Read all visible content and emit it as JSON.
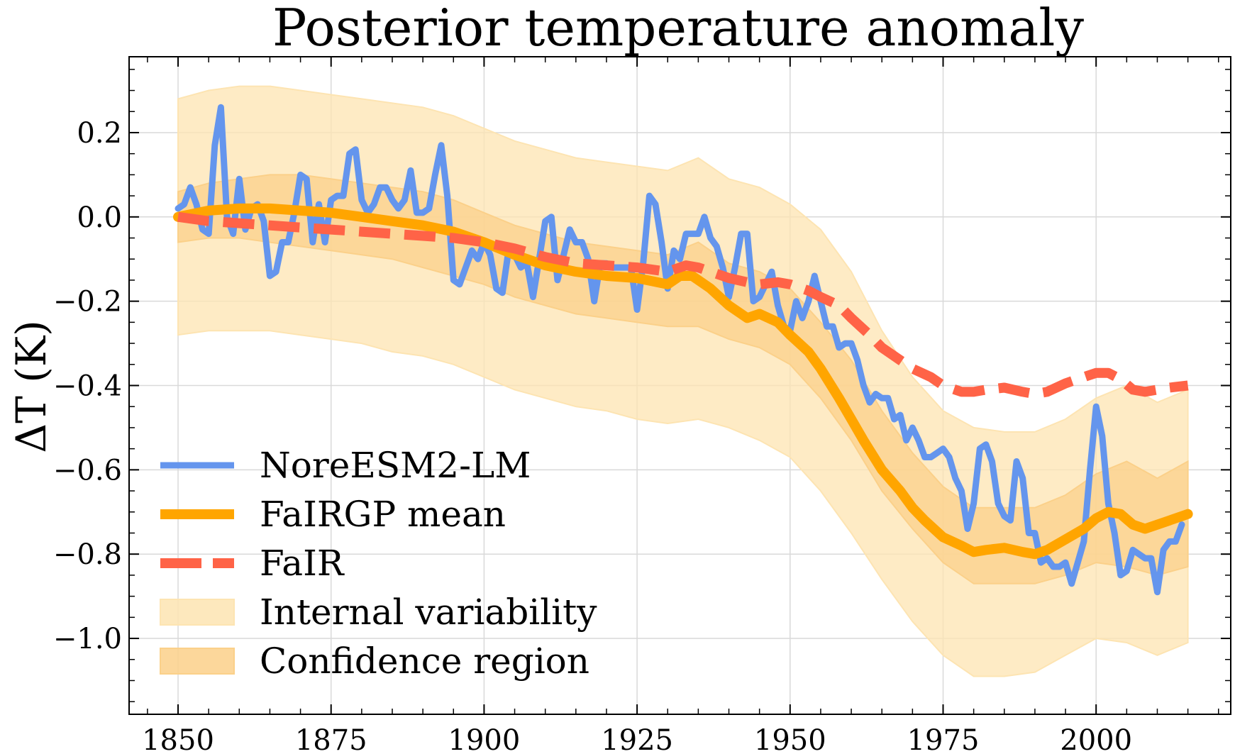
{
  "chart_data": {
    "type": "line",
    "title": "Posterior temperature anomaly",
    "ylabel": "ΔT (K)",
    "xlabel": "",
    "xlim": [
      1842,
      2022
    ],
    "ylim": [
      -1.18,
      0.38
    ],
    "grid": true,
    "legend_position": "bottom-left",
    "x_ticks": [
      1850,
      1875,
      1900,
      1925,
      1950,
      1975,
      2000
    ],
    "y_ticks": [
      0.2,
      0.0,
      -0.2,
      -0.4,
      -0.6,
      -0.8,
      -1.0
    ],
    "x_tick_labels": [
      "1850",
      "1875",
      "1900",
      "1925",
      "1950",
      "1975",
      "2000"
    ],
    "y_tick_labels": [
      "0.2",
      "0.0",
      "−0.2",
      "−0.4",
      "−0.6",
      "−0.8",
      "−1.0"
    ],
    "legend": {
      "noresm": "NoreESM2-LM",
      "fairgp_mean": "FaIRGP mean",
      "fair": "FaIR",
      "internal_variability": "Internal variability",
      "confidence_region": "Confidence region"
    },
    "colors": {
      "noresm": "#6495ED",
      "fairgp_mean": "#FFA500",
      "fair": "#FF6347",
      "internal_variability": "#FDE4B2",
      "confidence_region": "#FBD089"
    },
    "series": [
      {
        "key": "noresm",
        "style": "solid",
        "x": [
          1850,
          1851,
          1852,
          1853,
          1854,
          1855,
          1856,
          1857,
          1858,
          1859,
          1860,
          1861,
          1862,
          1863,
          1864,
          1865,
          1866,
          1867,
          1868,
          1869,
          1870,
          1871,
          1872,
          1873,
          1874,
          1875,
          1876,
          1877,
          1878,
          1879,
          1880,
          1881,
          1882,
          1883,
          1884,
          1885,
          1886,
          1887,
          1888,
          1889,
          1890,
          1891,
          1892,
          1893,
          1894,
          1895,
          1896,
          1897,
          1898,
          1899,
          1900,
          1901,
          1902,
          1903,
          1904,
          1905,
          1906,
          1907,
          1908,
          1909,
          1910,
          1911,
          1912,
          1913,
          1914,
          1915,
          1916,
          1917,
          1918,
          1919,
          1920,
          1921,
          1922,
          1923,
          1924,
          1925,
          1926,
          1927,
          1928,
          1929,
          1930,
          1931,
          1932,
          1933,
          1934,
          1935,
          1936,
          1937,
          1938,
          1939,
          1940,
          1941,
          1942,
          1943,
          1944,
          1945,
          1946,
          1947,
          1948,
          1949,
          1950,
          1951,
          1952,
          1953,
          1954,
          1955,
          1956,
          1957,
          1958,
          1959,
          1960,
          1961,
          1962,
          1963,
          1964,
          1965,
          1966,
          1967,
          1968,
          1969,
          1970,
          1971,
          1972,
          1973,
          1974,
          1975,
          1976,
          1977,
          1978,
          1979,
          1980,
          1981,
          1982,
          1983,
          1984,
          1985,
          1986,
          1987,
          1988,
          1989,
          1990,
          1991,
          1992,
          1993,
          1994,
          1995,
          1996,
          1997,
          1998,
          1999,
          2000,
          2001,
          2002,
          2003,
          2004,
          2005,
          2006,
          2007,
          2008,
          2009,
          2010,
          2011,
          2012,
          2013,
          2014
        ],
        "y": [
          0.02,
          0.03,
          0.07,
          0.03,
          -0.03,
          -0.04,
          0.17,
          0.26,
          0.0,
          -0.04,
          0.09,
          -0.03,
          0.02,
          0.03,
          -0.01,
          -0.14,
          -0.13,
          -0.06,
          -0.06,
          0.01,
          0.1,
          0.09,
          -0.06,
          0.03,
          -0.06,
          0.04,
          0.05,
          0.05,
          0.15,
          0.16,
          0.04,
          0.01,
          0.03,
          0.07,
          0.07,
          0.04,
          0.02,
          0.04,
          0.11,
          0.01,
          0.01,
          0.02,
          0.1,
          0.17,
          0.05,
          -0.15,
          -0.16,
          -0.12,
          -0.08,
          -0.1,
          -0.06,
          -0.09,
          -0.17,
          -0.18,
          -0.08,
          -0.09,
          -0.12,
          -0.11,
          -0.19,
          -0.1,
          -0.01,
          0.0,
          -0.15,
          -0.09,
          -0.03,
          -0.06,
          -0.06,
          -0.1,
          -0.2,
          -0.11,
          -0.11,
          -0.12,
          -0.12,
          -0.12,
          -0.12,
          -0.22,
          -0.11,
          0.05,
          0.03,
          -0.06,
          -0.17,
          -0.08,
          -0.1,
          -0.04,
          -0.04,
          -0.04,
          0.0,
          -0.05,
          -0.07,
          -0.12,
          -0.19,
          -0.12,
          -0.04,
          -0.04,
          -0.2,
          -0.19,
          -0.16,
          -0.13,
          -0.21,
          -0.26,
          -0.27,
          -0.2,
          -0.24,
          -0.2,
          -0.14,
          -0.2,
          -0.26,
          -0.26,
          -0.31,
          -0.3,
          -0.3,
          -0.34,
          -0.4,
          -0.44,
          -0.42,
          -0.43,
          -0.43,
          -0.48,
          -0.47,
          -0.53,
          -0.5,
          -0.53,
          -0.57,
          -0.57,
          -0.56,
          -0.55,
          -0.57,
          -0.62,
          -0.65,
          -0.74,
          -0.68,
          -0.55,
          -0.54,
          -0.58,
          -0.68,
          -0.71,
          -0.72,
          -0.58,
          -0.62,
          -0.75,
          -0.75,
          -0.82,
          -0.81,
          -0.83,
          -0.83,
          -0.82,
          -0.87,
          -0.82,
          -0.77,
          -0.6,
          -0.45,
          -0.52,
          -0.68,
          -0.75,
          -0.85,
          -0.84,
          -0.79,
          -0.8,
          -0.81,
          -0.81,
          -0.89,
          -0.79,
          -0.77,
          -0.77,
          -0.73
        ]
      },
      {
        "key": "fairgp_mean",
        "style": "solid",
        "x": [
          1850,
          1855,
          1860,
          1865,
          1870,
          1875,
          1880,
          1885,
          1890,
          1895,
          1900,
          1905,
          1910,
          1915,
          1920,
          1925,
          1930,
          1932,
          1934,
          1935,
          1937,
          1940,
          1943,
          1945,
          1948,
          1950,
          1953,
          1955,
          1958,
          1960,
          1962,
          1965,
          1968,
          1970,
          1972,
          1975,
          1978,
          1980,
          1982,
          1985,
          1988,
          1990,
          1992,
          1995,
          1998,
          2000,
          2002,
          2004,
          2006,
          2008,
          2010,
          2012,
          2015
        ],
        "y": [
          0.0,
          0.015,
          0.02,
          0.02,
          0.015,
          0.01,
          0.0,
          -0.01,
          -0.02,
          -0.035,
          -0.06,
          -0.09,
          -0.115,
          -0.13,
          -0.14,
          -0.145,
          -0.16,
          -0.14,
          -0.14,
          -0.15,
          -0.17,
          -0.21,
          -0.24,
          -0.23,
          -0.25,
          -0.28,
          -0.32,
          -0.36,
          -0.43,
          -0.48,
          -0.53,
          -0.6,
          -0.65,
          -0.69,
          -0.72,
          -0.76,
          -0.78,
          -0.795,
          -0.79,
          -0.785,
          -0.795,
          -0.8,
          -0.79,
          -0.765,
          -0.74,
          -0.715,
          -0.7,
          -0.705,
          -0.73,
          -0.74,
          -0.73,
          -0.72,
          -0.705
        ]
      },
      {
        "key": "fair",
        "style": "dashed",
        "x": [
          1850,
          1855,
          1860,
          1865,
          1870,
          1875,
          1880,
          1885,
          1890,
          1895,
          1900,
          1905,
          1910,
          1915,
          1920,
          1925,
          1930,
          1933,
          1935,
          1938,
          1940,
          1943,
          1945,
          1948,
          1950,
          1953,
          1955,
          1958,
          1960,
          1963,
          1965,
          1968,
          1970,
          1973,
          1975,
          1978,
          1980,
          1982,
          1985,
          1988,
          1990,
          1992,
          1995,
          1998,
          2000,
          2002,
          2004,
          2006,
          2008,
          2010,
          2012,
          2015
        ],
        "y": [
          0.0,
          -0.01,
          -0.015,
          -0.02,
          -0.025,
          -0.03,
          -0.035,
          -0.04,
          -0.045,
          -0.05,
          -0.06,
          -0.075,
          -0.095,
          -0.11,
          -0.115,
          -0.12,
          -0.13,
          -0.115,
          -0.12,
          -0.135,
          -0.145,
          -0.155,
          -0.16,
          -0.155,
          -0.16,
          -0.175,
          -0.19,
          -0.21,
          -0.24,
          -0.28,
          -0.31,
          -0.34,
          -0.36,
          -0.38,
          -0.4,
          -0.415,
          -0.415,
          -0.41,
          -0.405,
          -0.415,
          -0.42,
          -0.415,
          -0.395,
          -0.38,
          -0.37,
          -0.37,
          -0.385,
          -0.41,
          -0.415,
          -0.41,
          -0.405,
          -0.4
        ]
      }
    ],
    "bands": [
      {
        "key": "internal_variability",
        "x": [
          1850,
          1855,
          1860,
          1865,
          1870,
          1875,
          1880,
          1885,
          1890,
          1895,
          1900,
          1905,
          1910,
          1915,
          1920,
          1925,
          1930,
          1935,
          1940,
          1945,
          1950,
          1955,
          1960,
          1965,
          1970,
          1975,
          1980,
          1985,
          1990,
          1995,
          2000,
          2005,
          2010,
          2015
        ],
        "lower": [
          -0.28,
          -0.27,
          -0.27,
          -0.27,
          -0.28,
          -0.29,
          -0.3,
          -0.32,
          -0.33,
          -0.35,
          -0.38,
          -0.41,
          -0.43,
          -0.45,
          -0.46,
          -0.48,
          -0.49,
          -0.48,
          -0.5,
          -0.53,
          -0.57,
          -0.65,
          -0.75,
          -0.86,
          -0.96,
          -1.04,
          -1.09,
          -1.09,
          -1.08,
          -1.04,
          -1.0,
          -1.01,
          -1.04,
          -1.01
        ],
        "upper": [
          0.28,
          0.3,
          0.31,
          0.31,
          0.3,
          0.29,
          0.28,
          0.27,
          0.26,
          0.24,
          0.21,
          0.18,
          0.16,
          0.14,
          0.13,
          0.12,
          0.11,
          0.14,
          0.09,
          0.07,
          0.03,
          -0.03,
          -0.13,
          -0.27,
          -0.38,
          -0.46,
          -0.5,
          -0.51,
          -0.51,
          -0.48,
          -0.43,
          -0.4,
          -0.44,
          -0.41
        ]
      },
      {
        "key": "confidence_region",
        "x": [
          1850,
          1855,
          1860,
          1865,
          1870,
          1875,
          1880,
          1885,
          1890,
          1895,
          1900,
          1905,
          1910,
          1915,
          1920,
          1925,
          1930,
          1935,
          1940,
          1945,
          1950,
          1955,
          1960,
          1965,
          1970,
          1975,
          1980,
          1985,
          1990,
          1995,
          2000,
          2005,
          2010,
          2015
        ],
        "lower": [
          -0.06,
          -0.05,
          -0.05,
          -0.06,
          -0.07,
          -0.08,
          -0.09,
          -0.1,
          -0.12,
          -0.14,
          -0.16,
          -0.19,
          -0.21,
          -0.23,
          -0.24,
          -0.25,
          -0.26,
          -0.26,
          -0.29,
          -0.31,
          -0.35,
          -0.43,
          -0.53,
          -0.65,
          -0.74,
          -0.82,
          -0.87,
          -0.87,
          -0.87,
          -0.85,
          -0.82,
          -0.83,
          -0.85,
          -0.83
        ],
        "upper": [
          0.06,
          0.08,
          0.09,
          0.1,
          0.1,
          0.09,
          0.08,
          0.07,
          0.06,
          0.04,
          0.01,
          -0.02,
          -0.04,
          -0.06,
          -0.07,
          -0.08,
          -0.09,
          -0.06,
          -0.11,
          -0.13,
          -0.17,
          -0.25,
          -0.34,
          -0.46,
          -0.56,
          -0.64,
          -0.69,
          -0.69,
          -0.69,
          -0.66,
          -0.61,
          -0.58,
          -0.62,
          -0.58
        ]
      }
    ]
  }
}
